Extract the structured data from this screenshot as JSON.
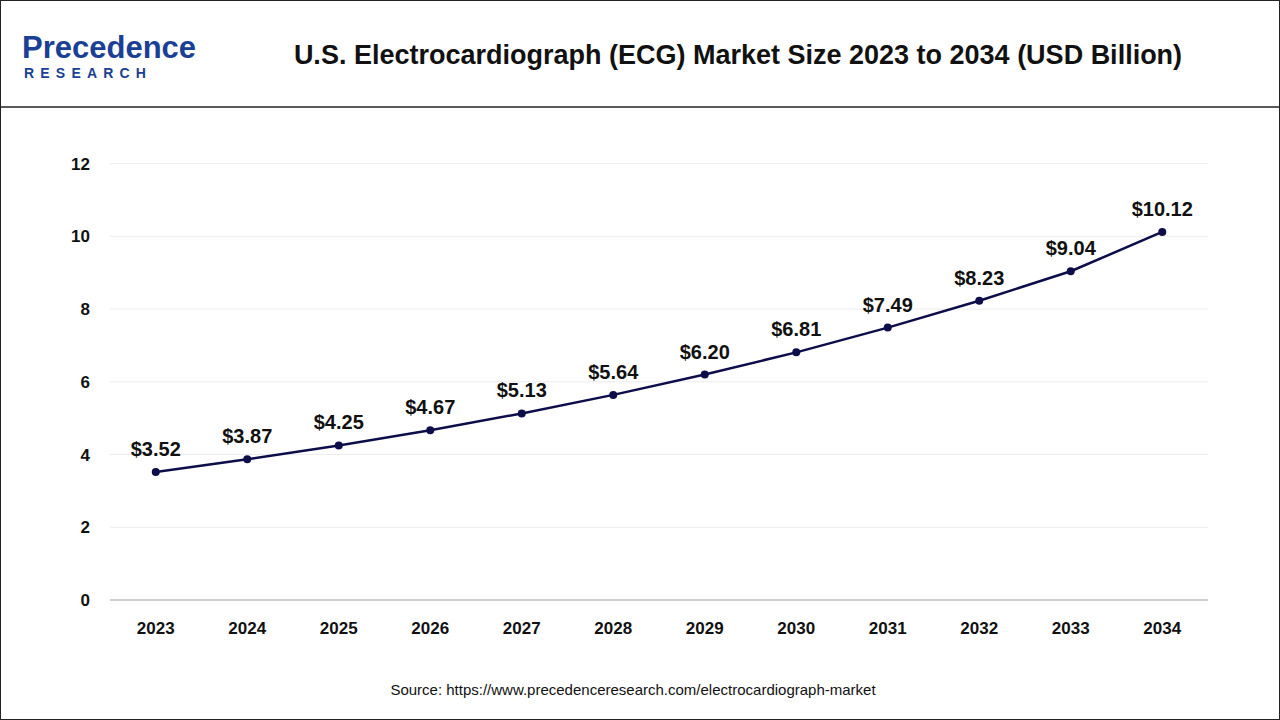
{
  "logo": {
    "name": "Precedence",
    "tagline": "RESEARCH"
  },
  "source": "Source: https://www.precedenceresearch.com/electrocardiograph-market",
  "chart_data": {
    "type": "line",
    "title": "U.S. Electrocardiograph (ECG) Market Size 2023 to 2034 (USD Billion)",
    "categories": [
      "2023",
      "2024",
      "2025",
      "2026",
      "2027",
      "2028",
      "2029",
      "2030",
      "2031",
      "2032",
      "2033",
      "2034"
    ],
    "values": [
      3.52,
      3.87,
      4.25,
      4.67,
      5.13,
      5.64,
      6.2,
      6.81,
      7.49,
      8.23,
      9.04,
      10.12
    ],
    "value_labels": [
      "$3.52",
      "$3.87",
      "$4.25",
      "$4.67",
      "$5.13",
      "$5.64",
      "$6.20",
      "$6.81",
      "$7.49",
      "$8.23",
      "$9.04",
      "$10.12"
    ],
    "color": "#0d0d4a",
    "ylim": [
      0,
      12
    ],
    "yticks": [
      0,
      2,
      4,
      6,
      8,
      10,
      12
    ],
    "grid": true,
    "data_labels": true,
    "marker": "circle"
  }
}
